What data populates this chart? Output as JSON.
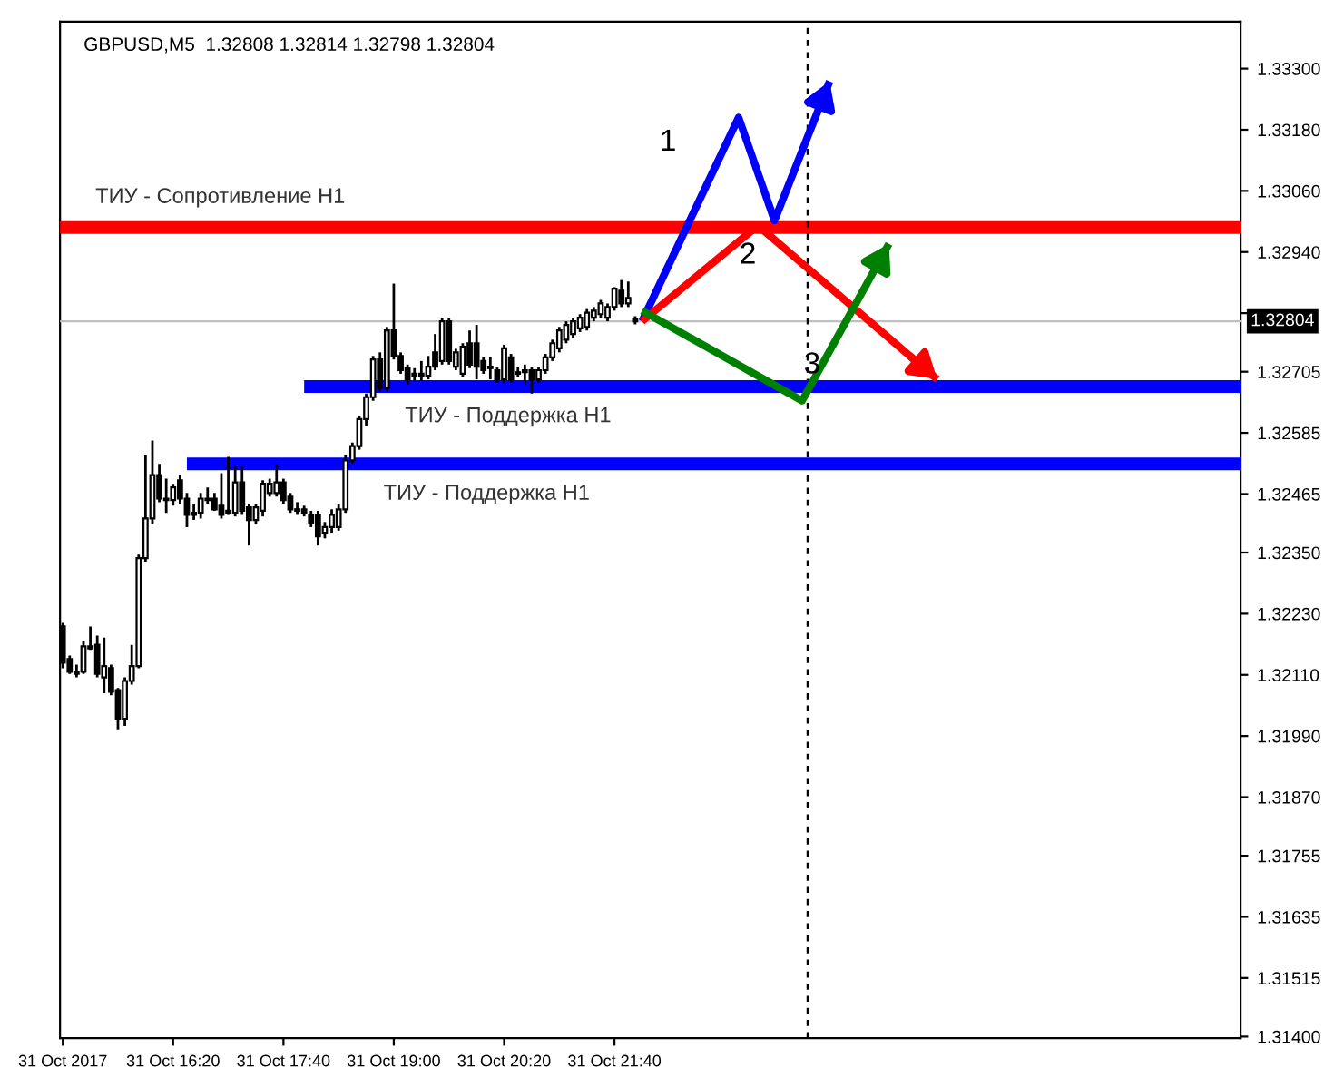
{
  "chart_data": {
    "type": "candlestick",
    "title": "GBPUSD,M5  1.32808 1.32814 1.32798 1.32804",
    "x": [
      "2017-10-31T15:00",
      "2017-10-31T15:05",
      "2017-10-31T15:10",
      "2017-10-31T15:15",
      "2017-10-31T15:20",
      "2017-10-31T15:25",
      "2017-10-31T15:30",
      "2017-10-31T15:35",
      "2017-10-31T15:40",
      "2017-10-31T15:45",
      "2017-10-31T15:50",
      "2017-10-31T15:55",
      "2017-10-31T16:00",
      "2017-10-31T16:05",
      "2017-10-31T16:10",
      "2017-10-31T16:15",
      "2017-10-31T16:20",
      "2017-10-31T16:25",
      "2017-10-31T16:30",
      "2017-10-31T16:35",
      "2017-10-31T16:40",
      "2017-10-31T16:45",
      "2017-10-31T16:50",
      "2017-10-31T16:55",
      "2017-10-31T17:00",
      "2017-10-31T17:05",
      "2017-10-31T17:10",
      "2017-10-31T17:15",
      "2017-10-31T17:20",
      "2017-10-31T17:25",
      "2017-10-31T17:30",
      "2017-10-31T17:35",
      "2017-10-31T17:40",
      "2017-10-31T17:45",
      "2017-10-31T17:50",
      "2017-10-31T17:55",
      "2017-10-31T18:00",
      "2017-10-31T18:05",
      "2017-10-31T18:10",
      "2017-10-31T18:15",
      "2017-10-31T18:20",
      "2017-10-31T18:25",
      "2017-10-31T18:30",
      "2017-10-31T18:35",
      "2017-10-31T18:40",
      "2017-10-31T18:45",
      "2017-10-31T18:50",
      "2017-10-31T18:55",
      "2017-10-31T19:00",
      "2017-10-31T19:05",
      "2017-10-31T19:10",
      "2017-10-31T19:15",
      "2017-10-31T19:20",
      "2017-10-31T19:25",
      "2017-10-31T19:30",
      "2017-10-31T19:35",
      "2017-10-31T19:40",
      "2017-10-31T19:45",
      "2017-10-31T19:50",
      "2017-10-31T19:55",
      "2017-10-31T20:00",
      "2017-10-31T20:05",
      "2017-10-31T20:10",
      "2017-10-31T20:15",
      "2017-10-31T20:20",
      "2017-10-31T20:25",
      "2017-10-31T20:30",
      "2017-10-31T20:35",
      "2017-10-31T20:40",
      "2017-10-31T20:45",
      "2017-10-31T20:50",
      "2017-10-31T20:55",
      "2017-10-31T21:00",
      "2017-10-31T21:05",
      "2017-10-31T21:10",
      "2017-10-31T21:15",
      "2017-10-31T21:20",
      "2017-10-31T21:25",
      "2017-10-31T21:30",
      "2017-10-31T21:35",
      "2017-10-31T21:40",
      "2017-10-31T21:45",
      "2017-10-31T21:50",
      "2017-10-31T21:55"
    ],
    "ohlc": [
      [
        1.32205,
        1.32212,
        1.32123,
        1.32134
      ],
      [
        1.32141,
        1.32148,
        1.32112,
        1.32116
      ],
      [
        1.32116,
        1.3213,
        1.32105,
        1.32112
      ],
      [
        1.32116,
        1.32176,
        1.32112,
        1.32166
      ],
      [
        1.32166,
        1.32205,
        1.32159,
        1.32162
      ],
      [
        1.32169,
        1.32187,
        1.32105,
        1.32112
      ],
      [
        1.32105,
        1.32183,
        1.32074,
        1.32127
      ],
      [
        1.32123,
        1.3213,
        1.3207,
        1.32077
      ],
      [
        1.3208,
        1.32084,
        1.32003,
        1.32024
      ],
      [
        1.32024,
        1.32105,
        1.3201,
        1.32098
      ],
      [
        1.32098,
        1.32169,
        1.32091,
        1.32127
      ],
      [
        1.32127,
        1.32346,
        1.32123,
        1.32339
      ],
      [
        1.32339,
        1.32541,
        1.32332,
        1.32417
      ],
      [
        1.32417,
        1.3257,
        1.32407,
        1.32502
      ],
      [
        1.32502,
        1.32524,
        1.32449,
        1.32456
      ],
      [
        1.32456,
        1.32495,
        1.32428,
        1.32453
      ],
      [
        1.32453,
        1.32485,
        1.32442,
        1.32478
      ],
      [
        1.32492,
        1.32502,
        1.32446,
        1.32456
      ],
      [
        1.32456,
        1.32467,
        1.324,
        1.32424
      ],
      [
        1.32424,
        1.32446,
        1.32414,
        1.32428
      ],
      [
        1.32428,
        1.32467,
        1.32417,
        1.32456
      ],
      [
        1.32456,
        1.32478,
        1.32446,
        1.32453
      ],
      [
        1.32456,
        1.32467,
        1.32432,
        1.32435
      ],
      [
        1.32442,
        1.32506,
        1.32417,
        1.32424
      ],
      [
        1.32432,
        1.32538,
        1.32424,
        1.32428
      ],
      [
        1.32428,
        1.3252,
        1.32421,
        1.32488
      ],
      [
        1.32488,
        1.3252,
        1.32424,
        1.32432
      ],
      [
        1.32439,
        1.32446,
        1.32364,
        1.32414
      ],
      [
        1.32414,
        1.32446,
        1.32407,
        1.32439
      ],
      [
        1.32432,
        1.32492,
        1.32421,
        1.32485
      ],
      [
        1.32467,
        1.32495,
        1.3246,
        1.32485
      ],
      [
        1.32467,
        1.32524,
        1.3246,
        1.32488
      ],
      [
        1.32488,
        1.32495,
        1.32446,
        1.32453
      ],
      [
        1.3246,
        1.32467,
        1.32428,
        1.32435
      ],
      [
        1.32435,
        1.32449,
        1.32424,
        1.32432
      ],
      [
        1.32435,
        1.32442,
        1.32421,
        1.32428
      ],
      [
        1.32424,
        1.32432,
        1.324,
        1.32407
      ],
      [
        1.32424,
        1.32432,
        1.32364,
        1.32382
      ],
      [
        1.32389,
        1.3241,
        1.32378,
        1.324
      ],
      [
        1.324,
        1.32435,
        1.32389,
        1.32424
      ],
      [
        1.324,
        1.32446,
        1.32393,
        1.32435
      ],
      [
        1.32435,
        1.32541,
        1.32428,
        1.32531
      ],
      [
        1.32531,
        1.32566,
        1.32524,
        1.32559
      ],
      [
        1.32559,
        1.32619,
        1.32552,
        1.32612
      ],
      [
        1.32612,
        1.32662,
        1.32598,
        1.32655
      ],
      [
        1.32655,
        1.32736,
        1.32648,
        1.32729
      ],
      [
        1.32729,
        1.32743,
        1.32666,
        1.32673
      ],
      [
        1.32673,
        1.32793,
        1.32666,
        1.32786
      ],
      [
        1.32786,
        1.32878,
        1.32729,
        1.32736
      ],
      [
        1.32736,
        1.32743,
        1.32701,
        1.32708
      ],
      [
        1.32712,
        1.32719,
        1.3268,
        1.3269
      ],
      [
        1.32701,
        1.32712,
        1.32687,
        1.32697
      ],
      [
        1.32697,
        1.32726,
        1.32687,
        1.32701
      ],
      [
        1.32697,
        1.32736,
        1.3269,
        1.32715
      ],
      [
        1.32743,
        1.32779,
        1.32708,
        1.32715
      ],
      [
        1.32726,
        1.32811,
        1.32719,
        1.32804
      ],
      [
        1.32804,
        1.32811,
        1.32719,
        1.32726
      ],
      [
        1.32715,
        1.3275,
        1.32708,
        1.32743
      ],
      [
        1.32701,
        1.32761,
        1.32694,
        1.32754
      ],
      [
        1.32761,
        1.32786,
        1.32712,
        1.32719
      ],
      [
        1.32761,
        1.32797,
        1.3269,
        1.32715
      ],
      [
        1.32726,
        1.32733,
        1.32701,
        1.32708
      ],
      [
        1.32715,
        1.32733,
        1.3269,
        1.32712
      ],
      [
        1.32708,
        1.32715,
        1.32683,
        1.3269
      ],
      [
        1.3269,
        1.32758,
        1.32683,
        1.32751
      ],
      [
        1.32733,
        1.3274,
        1.32683,
        1.3269
      ],
      [
        1.32704,
        1.32715,
        1.32694,
        1.32701
      ],
      [
        1.32708,
        1.32719,
        1.3268,
        1.32704
      ],
      [
        1.32708,
        1.32715,
        1.32662,
        1.3269
      ],
      [
        1.3269,
        1.32715,
        1.32683,
        1.32708
      ],
      [
        1.32708,
        1.3274,
        1.32701,
        1.32733
      ],
      [
        1.32733,
        1.32768,
        1.32726,
        1.32761
      ],
      [
        1.32751,
        1.32793,
        1.32743,
        1.32786
      ],
      [
        1.32768,
        1.32804,
        1.32761,
        1.32797
      ],
      [
        1.32779,
        1.32811,
        1.32772,
        1.32804
      ],
      [
        1.3279,
        1.32818,
        1.32783,
        1.32811
      ],
      [
        1.32793,
        1.32828,
        1.32786,
        1.32821
      ],
      [
        1.32811,
        1.32832,
        1.32804,
        1.32825
      ],
      [
        1.32818,
        1.32846,
        1.32811,
        1.32839
      ],
      [
        1.32811,
        1.32839,
        1.32804,
        1.32832
      ],
      [
        1.32832,
        1.32871,
        1.32825,
        1.32868
      ],
      [
        1.32864,
        1.32885,
        1.32832,
        1.32839
      ],
      [
        1.32839,
        1.32882,
        1.32832,
        1.3285
      ],
      [
        1.32808,
        1.32814,
        1.32798,
        1.32804
      ]
    ],
    "series": [
      {
        "type": "line",
        "name": "ТИУ - Поддержка H1",
        "color": "#0000ff",
        "x": [
          "2017-10-31T17:55",
          "2017-11-01T05:14"
        ],
        "values": [
          1.32676,
          1.32676
        ]
      },
      {
        "type": "line",
        "name": "ТИУ - Поддержка H1",
        "color": "#0000ff",
        "x": [
          "2017-10-31T16:30",
          "2017-11-01T05:14"
        ],
        "values": [
          1.32524,
          1.32524
        ]
      },
      {
        "type": "line",
        "color": "#0000ff",
        "x": [
          "2017-10-31T22:00",
          "2017-10-31T23:10",
          "2017-10-31T23:36",
          "2017-11-01T00:16"
        ],
        "values": [
          1.32804,
          1.33204,
          1.33002,
          1.33275
        ]
      },
      {
        "type": "line",
        "color": "#ff0000",
        "x": [
          "2017-10-31T22:00",
          "2017-10-31T23:24",
          "2017-11-01T01:34"
        ],
        "values": [
          1.32804,
          1.32992,
          1.3269
        ]
      },
      {
        "type": "line",
        "color": "#008000",
        "x": [
          "2017-10-31T22:00",
          "2017-10-31T23:56",
          "2017-11-01T00:59"
        ],
        "values": [
          1.32825,
          1.32648,
          1.32956
        ]
      }
    ],
    "ref_lines": [
      {
        "axis": "y",
        "value": 1.32988,
        "label": "ТИУ - Сопротивление H1",
        "color": "#ff0000",
        "line_style": "solid"
      },
      {
        "axis": "y",
        "value": 1.32804,
        "label": "1.32804",
        "color": "#c0c0c0",
        "line_style": "solid"
      },
      {
        "axis": "x",
        "value": "2017-11-01T00:00",
        "label": null,
        "color": "#000000",
        "line_style": "dashed"
      }
    ],
    "annotations": [
      "1",
      "2",
      "3"
    ],
    "xlim": [
      "2017-10-31T14:58",
      "2017-11-01T05:14"
    ],
    "ylim": [
      1.31397,
      1.33392
    ],
    "xticks": [
      {
        "value": "2017-10-31T15:00",
        "label": "31 Oct 2017"
      },
      {
        "value": "2017-10-31T16:20",
        "label": "31 Oct 16:20"
      },
      {
        "value": "2017-10-31T17:40",
        "label": "31 Oct 17:40"
      },
      {
        "value": "2017-10-31T19:00",
        "label": "31 Oct 19:00"
      },
      {
        "value": "2017-10-31T20:20",
        "label": "31 Oct 20:20"
      },
      {
        "value": "2017-10-31T21:40",
        "label": "31 Oct 21:40"
      }
    ],
    "yticks": [
      {
        "value": 1.314,
        "label": "1.31400"
      },
      {
        "value": 1.31515,
        "label": "1.31515"
      },
      {
        "value": 1.31635,
        "label": "1.31635"
      },
      {
        "value": 1.31755,
        "label": "1.31755"
      },
      {
        "value": 1.3187,
        "label": "1.31870"
      },
      {
        "value": 1.3199,
        "label": "1.31990"
      },
      {
        "value": 1.3211,
        "label": "1.32110"
      },
      {
        "value": 1.3223,
        "label": "1.32230"
      },
      {
        "value": 1.3235,
        "label": "1.32350"
      },
      {
        "value": 1.32465,
        "label": "1.32465"
      },
      {
        "value": 1.32585,
        "label": "1.32585"
      },
      {
        "value": 1.32705,
        "label": "1.32705"
      },
      {
        "value": 1.3282,
        "label": null
      },
      {
        "value": 1.3294,
        "label": "1.32940"
      },
      {
        "value": 1.3306,
        "label": "1.33060"
      },
      {
        "value": 1.3318,
        "label": "1.33180"
      },
      {
        "value": 1.333,
        "label": "1.33300"
      }
    ],
    "grid": false,
    "legend": false
  }
}
